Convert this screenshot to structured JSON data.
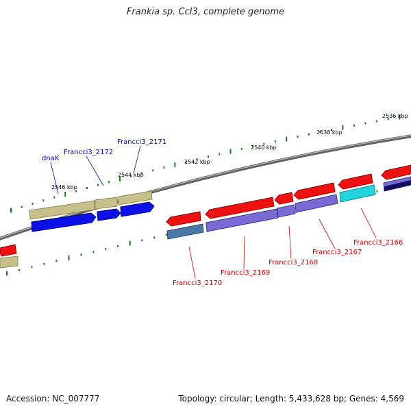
{
  "title": "Frankia sp. CcI3, complete genome",
  "accession": "Accession: NC_007777",
  "summary": "Topology: circular; Length: 5,433,628 bp; Genes: 4,569",
  "colors": {
    "backbone": "#808080",
    "label_forward": "#0000cc",
    "label_reverse": "#cc0000",
    "tick": "#1a7a1a"
  },
  "scale": {
    "ticks": [
      {
        "label": "2546 kbp"
      },
      {
        "label": "2544 kbp"
      },
      {
        "label": "2542 kbp"
      },
      {
        "label": "2540 kbp"
      },
      {
        "label": "2538 kbp"
      },
      {
        "label": "2536 kbp"
      }
    ]
  },
  "genes": [
    {
      "label": "dnaK",
      "strand": "forward"
    },
    {
      "label": "Francci3_2172",
      "strand": "forward"
    },
    {
      "label": "Francci3_2171",
      "strand": "forward"
    },
    {
      "label": "Francci3_2170",
      "strand": "reverse"
    },
    {
      "label": "Francci3_2169",
      "strand": "reverse"
    },
    {
      "label": "Francci3_2168",
      "strand": "reverse"
    },
    {
      "label": "Francci3_2167",
      "strand": "reverse"
    },
    {
      "label": "Francci3_2166",
      "strand": "reverse"
    }
  ]
}
